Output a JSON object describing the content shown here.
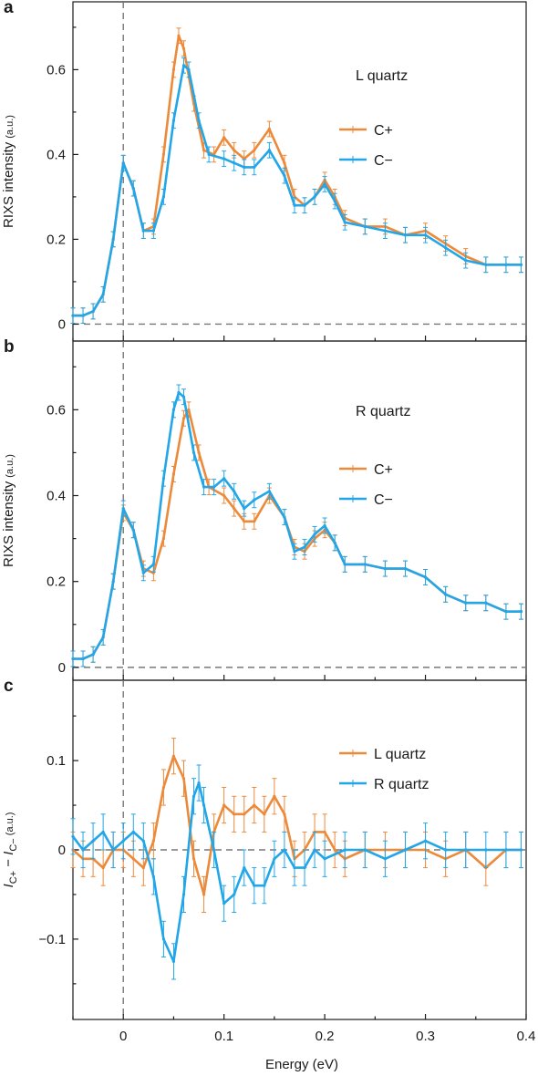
{
  "colors": {
    "orange": "#ec8a3c",
    "blue": "#22a6e8",
    "axis": "#1a1a1a",
    "dashed": "#777777"
  },
  "figure": {
    "xlabel": "Energy (eV)",
    "xticks": [
      0,
      0.1,
      0.2,
      0.3,
      0.4
    ],
    "xtick_labels": [
      "0",
      "0.1",
      "0.2",
      "0.3",
      "0.4"
    ]
  },
  "chart_data": [
    {
      "type": "line",
      "panel_letter": "a",
      "annotation": "L quartz",
      "ylabel_main": "RIXS intensity",
      "ylabel_unit": "(a.u.)",
      "ylabel_sub_1": "",
      "ylabel_sub_2": "",
      "xlim": [
        -0.05,
        0.4
      ],
      "ylim": [
        -0.04,
        0.76
      ],
      "yticks": [
        0,
        0.2,
        0.4,
        0.6
      ],
      "ytick_labels": [
        "0",
        "0.2",
        "0.4",
        "0.6"
      ],
      "error_bar": 0.018,
      "series": [
        {
          "name": "C+",
          "color": "orange",
          "style": "line-with-error-bars",
          "points": [
            [
              -0.05,
              0.02
            ],
            [
              -0.04,
              0.02
            ],
            [
              -0.03,
              0.03
            ],
            [
              -0.02,
              0.07
            ],
            [
              -0.01,
              0.2
            ],
            [
              0.0,
              0.38
            ],
            [
              0.01,
              0.32
            ],
            [
              0.02,
              0.22
            ],
            [
              0.03,
              0.23
            ],
            [
              0.04,
              0.4
            ],
            [
              0.05,
              0.6
            ],
            [
              0.055,
              0.68
            ],
            [
              0.06,
              0.65
            ],
            [
              0.07,
              0.52
            ],
            [
              0.08,
              0.41
            ],
            [
              0.09,
              0.4
            ],
            [
              0.1,
              0.44
            ],
            [
              0.11,
              0.41
            ],
            [
              0.12,
              0.39
            ],
            [
              0.13,
              0.41
            ],
            [
              0.145,
              0.46
            ],
            [
              0.16,
              0.38
            ],
            [
              0.17,
              0.3
            ],
            [
              0.18,
              0.28
            ],
            [
              0.19,
              0.3
            ],
            [
              0.2,
              0.34
            ],
            [
              0.21,
              0.3
            ],
            [
              0.22,
              0.25
            ],
            [
              0.24,
              0.23
            ],
            [
              0.26,
              0.23
            ],
            [
              0.28,
              0.21
            ],
            [
              0.3,
              0.22
            ],
            [
              0.32,
              0.19
            ],
            [
              0.34,
              0.16
            ],
            [
              0.36,
              0.14
            ],
            [
              0.38,
              0.14
            ],
            [
              0.395,
              0.14
            ]
          ]
        },
        {
          "name": "C−",
          "color": "blue",
          "style": "line-with-error-bars",
          "points": [
            [
              -0.05,
              0.02
            ],
            [
              -0.04,
              0.02
            ],
            [
              -0.03,
              0.03
            ],
            [
              -0.02,
              0.07
            ],
            [
              -0.01,
              0.2
            ],
            [
              0.0,
              0.38
            ],
            [
              0.01,
              0.32
            ],
            [
              0.02,
              0.22
            ],
            [
              0.03,
              0.22
            ],
            [
              0.04,
              0.3
            ],
            [
              0.05,
              0.48
            ],
            [
              0.06,
              0.61
            ],
            [
              0.065,
              0.6
            ],
            [
              0.075,
              0.48
            ],
            [
              0.085,
              0.4
            ],
            [
              0.1,
              0.39
            ],
            [
              0.11,
              0.38
            ],
            [
              0.12,
              0.37
            ],
            [
              0.13,
              0.37
            ],
            [
              0.145,
              0.41
            ],
            [
              0.16,
              0.35
            ],
            [
              0.17,
              0.28
            ],
            [
              0.18,
              0.28
            ],
            [
              0.19,
              0.3
            ],
            [
              0.2,
              0.33
            ],
            [
              0.21,
              0.29
            ],
            [
              0.22,
              0.24
            ],
            [
              0.24,
              0.23
            ],
            [
              0.26,
              0.22
            ],
            [
              0.28,
              0.21
            ],
            [
              0.3,
              0.21
            ],
            [
              0.32,
              0.18
            ],
            [
              0.34,
              0.15
            ],
            [
              0.36,
              0.14
            ],
            [
              0.38,
              0.14
            ],
            [
              0.395,
              0.14
            ]
          ]
        }
      ]
    },
    {
      "type": "line",
      "panel_letter": "b",
      "annotation": "R quartz",
      "ylabel_main": "RIXS intensity",
      "ylabel_unit": "(a.u.)",
      "ylabel_sub_1": "",
      "ylabel_sub_2": "",
      "xlim": [
        -0.05,
        0.4
      ],
      "ylim": [
        -0.03,
        0.76
      ],
      "yticks": [
        0,
        0.2,
        0.4,
        0.6
      ],
      "ytick_labels": [
        "0",
        "0.2",
        "0.4",
        "0.6"
      ],
      "error_bar": 0.018,
      "series": [
        {
          "name": "C+",
          "color": "orange",
          "style": "line-with-error-bars",
          "points": [
            [
              -0.05,
              0.02
            ],
            [
              -0.04,
              0.02
            ],
            [
              -0.03,
              0.03
            ],
            [
              -0.02,
              0.07
            ],
            [
              -0.01,
              0.2
            ],
            [
              0.0,
              0.36
            ],
            [
              0.01,
              0.32
            ],
            [
              0.02,
              0.23
            ],
            [
              0.03,
              0.22
            ],
            [
              0.04,
              0.3
            ],
            [
              0.05,
              0.45
            ],
            [
              0.06,
              0.58
            ],
            [
              0.065,
              0.6
            ],
            [
              0.075,
              0.5
            ],
            [
              0.085,
              0.42
            ],
            [
              0.1,
              0.4
            ],
            [
              0.11,
              0.37
            ],
            [
              0.12,
              0.34
            ],
            [
              0.13,
              0.34
            ],
            [
              0.145,
              0.4
            ],
            [
              0.16,
              0.35
            ],
            [
              0.17,
              0.28
            ],
            [
              0.18,
              0.27
            ],
            [
              0.19,
              0.3
            ],
            [
              0.2,
              0.32
            ],
            [
              0.21,
              0.29
            ],
            [
              0.22,
              0.24
            ],
            [
              0.24,
              0.24
            ],
            [
              0.26,
              0.23
            ],
            [
              0.28,
              0.23
            ],
            [
              0.3,
              0.21
            ],
            [
              0.32,
              0.17
            ],
            [
              0.34,
              0.15
            ],
            [
              0.36,
              0.15
            ],
            [
              0.38,
              0.13
            ],
            [
              0.395,
              0.13
            ]
          ]
        },
        {
          "name": "C−",
          "color": "blue",
          "style": "line-with-error-bars",
          "points": [
            [
              -0.05,
              0.02
            ],
            [
              -0.04,
              0.02
            ],
            [
              -0.03,
              0.03
            ],
            [
              -0.02,
              0.07
            ],
            [
              -0.01,
              0.2
            ],
            [
              0.0,
              0.37
            ],
            [
              0.01,
              0.32
            ],
            [
              0.02,
              0.22
            ],
            [
              0.03,
              0.24
            ],
            [
              0.04,
              0.44
            ],
            [
              0.05,
              0.6
            ],
            [
              0.055,
              0.64
            ],
            [
              0.06,
              0.63
            ],
            [
              0.07,
              0.5
            ],
            [
              0.08,
              0.42
            ],
            [
              0.09,
              0.42
            ],
            [
              0.1,
              0.44
            ],
            [
              0.11,
              0.41
            ],
            [
              0.12,
              0.37
            ],
            [
              0.13,
              0.39
            ],
            [
              0.145,
              0.41
            ],
            [
              0.16,
              0.35
            ],
            [
              0.17,
              0.27
            ],
            [
              0.18,
              0.28
            ],
            [
              0.19,
              0.31
            ],
            [
              0.2,
              0.33
            ],
            [
              0.21,
              0.29
            ],
            [
              0.22,
              0.24
            ],
            [
              0.24,
              0.24
            ],
            [
              0.26,
              0.23
            ],
            [
              0.28,
              0.23
            ],
            [
              0.3,
              0.21
            ],
            [
              0.32,
              0.17
            ],
            [
              0.34,
              0.15
            ],
            [
              0.36,
              0.15
            ],
            [
              0.38,
              0.13
            ],
            [
              0.395,
              0.13
            ]
          ]
        }
      ]
    },
    {
      "type": "line",
      "panel_letter": "c",
      "annotation": "",
      "ylabel_main": "",
      "ylabel_unit": "(a.u.)",
      "ylabel_sub_1": "C+",
      "ylabel_sub_2": "C−",
      "xlim": [
        -0.05,
        0.4
      ],
      "ylim": [
        -0.19,
        0.19
      ],
      "yticks": [
        -0.1,
        0,
        0.1
      ],
      "ytick_labels": [
        "−0.1",
        "0",
        "0.1"
      ],
      "error_bar": 0.02,
      "series": [
        {
          "name": "L quartz",
          "color": "orange",
          "style": "line-with-error-bars",
          "points": [
            [
              -0.05,
              0.0
            ],
            [
              -0.04,
              -0.01
            ],
            [
              -0.03,
              -0.01
            ],
            [
              -0.02,
              -0.02
            ],
            [
              -0.01,
              0.0
            ],
            [
              0.0,
              0.0
            ],
            [
              0.01,
              -0.01
            ],
            [
              0.02,
              -0.02
            ],
            [
              0.03,
              0.01
            ],
            [
              0.04,
              0.07
            ],
            [
              0.05,
              0.105
            ],
            [
              0.06,
              0.08
            ],
            [
              0.07,
              -0.01
            ],
            [
              0.08,
              -0.05
            ],
            [
              0.09,
              0.02
            ],
            [
              0.1,
              0.05
            ],
            [
              0.11,
              0.04
            ],
            [
              0.12,
              0.04
            ],
            [
              0.13,
              0.05
            ],
            [
              0.14,
              0.04
            ],
            [
              0.15,
              0.06
            ],
            [
              0.16,
              0.04
            ],
            [
              0.17,
              -0.01
            ],
            [
              0.18,
              0.0
            ],
            [
              0.19,
              0.02
            ],
            [
              0.2,
              0.02
            ],
            [
              0.21,
              0.0
            ],
            [
              0.22,
              -0.01
            ],
            [
              0.24,
              0.0
            ],
            [
              0.26,
              0.0
            ],
            [
              0.28,
              0.0
            ],
            [
              0.3,
              0.0
            ],
            [
              0.32,
              -0.01
            ],
            [
              0.34,
              0.0
            ],
            [
              0.36,
              -0.02
            ],
            [
              0.38,
              0.0
            ],
            [
              0.395,
              0.0
            ]
          ]
        },
        {
          "name": "R quartz",
          "color": "blue",
          "style": "line-with-error-bars",
          "points": [
            [
              -0.05,
              0.015
            ],
            [
              -0.04,
              0.0
            ],
            [
              -0.03,
              0.01
            ],
            [
              -0.02,
              0.02
            ],
            [
              -0.01,
              0.0
            ],
            [
              0.0,
              0.01
            ],
            [
              0.01,
              0.02
            ],
            [
              0.02,
              0.01
            ],
            [
              0.03,
              -0.03
            ],
            [
              0.04,
              -0.1
            ],
            [
              0.05,
              -0.125
            ],
            [
              0.06,
              -0.05
            ],
            [
              0.07,
              0.06
            ],
            [
              0.075,
              0.075
            ],
            [
              0.08,
              0.05
            ],
            [
              0.09,
              0.0
            ],
            [
              0.1,
              -0.06
            ],
            [
              0.11,
              -0.05
            ],
            [
              0.12,
              -0.02
            ],
            [
              0.13,
              -0.04
            ],
            [
              0.14,
              -0.04
            ],
            [
              0.15,
              -0.01
            ],
            [
              0.16,
              0.0
            ],
            [
              0.17,
              -0.02
            ],
            [
              0.18,
              -0.02
            ],
            [
              0.19,
              0.0
            ],
            [
              0.2,
              -0.01
            ],
            [
              0.22,
              0.0
            ],
            [
              0.24,
              0.0
            ],
            [
              0.26,
              -0.01
            ],
            [
              0.28,
              0.0
            ],
            [
              0.3,
              0.01
            ],
            [
              0.32,
              0.0
            ],
            [
              0.34,
              0.0
            ],
            [
              0.36,
              0.0
            ],
            [
              0.38,
              0.0
            ],
            [
              0.395,
              0.0
            ]
          ]
        }
      ]
    }
  ]
}
